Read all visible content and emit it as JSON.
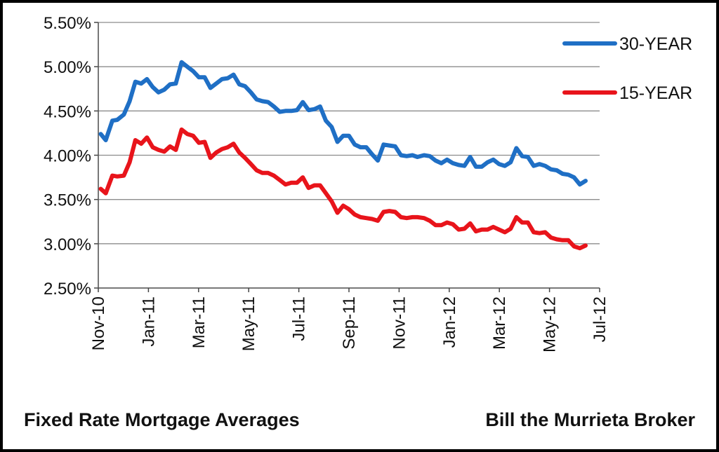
{
  "footer": {
    "left_text": "Fixed Rate Mortgage Averages",
    "right_text": "Bill the Murrieta Broker"
  },
  "chart_data": {
    "type": "line",
    "title": "",
    "xlabel": "",
    "ylabel": "",
    "ylim": [
      0.025,
      0.055
    ],
    "y_ticks": [
      "2.50%",
      "3.00%",
      "3.50%",
      "4.00%",
      "4.50%",
      "5.00%",
      "5.50%"
    ],
    "x_ticks": [
      "Nov-10",
      "Jan-11",
      "Mar-11",
      "May-11",
      "Jul-11",
      "Sep-11",
      "Nov-11",
      "Jan-12",
      "Mar-12",
      "May-12",
      "Jul-12"
    ],
    "grid": "horizontal",
    "legend_position": "top-right",
    "series": [
      {
        "name": "30-YEAR",
        "color": "#1f6fc5",
        "points": [
          [
            "2010-11-04",
            0.0424
          ],
          [
            "2010-11-10",
            0.0417
          ],
          [
            "2010-11-18",
            0.0439
          ],
          [
            "2010-11-24",
            0.044
          ],
          [
            "2010-12-02",
            0.0446
          ],
          [
            "2010-12-09",
            0.0461
          ],
          [
            "2010-12-16",
            0.0483
          ],
          [
            "2010-12-23",
            0.0481
          ],
          [
            "2010-12-30",
            0.0486
          ],
          [
            "2011-01-06",
            0.0477
          ],
          [
            "2011-01-13",
            0.0471
          ],
          [
            "2011-01-20",
            0.0474
          ],
          [
            "2011-01-27",
            0.048
          ],
          [
            "2011-02-03",
            0.0481
          ],
          [
            "2011-02-10",
            0.0505
          ],
          [
            "2011-02-17",
            0.05
          ],
          [
            "2011-02-24",
            0.0495
          ],
          [
            "2011-03-03",
            0.0488
          ],
          [
            "2011-03-10",
            0.0488
          ],
          [
            "2011-03-17",
            0.0476
          ],
          [
            "2011-03-24",
            0.0481
          ],
          [
            "2011-03-31",
            0.0486
          ],
          [
            "2011-04-07",
            0.0487
          ],
          [
            "2011-04-14",
            0.0491
          ],
          [
            "2011-04-21",
            0.048
          ],
          [
            "2011-04-28",
            0.0478
          ],
          [
            "2011-05-05",
            0.0471
          ],
          [
            "2011-05-12",
            0.0463
          ],
          [
            "2011-05-19",
            0.0461
          ],
          [
            "2011-05-26",
            0.046
          ],
          [
            "2011-06-02",
            0.0455
          ],
          [
            "2011-06-09",
            0.0449
          ],
          [
            "2011-06-16",
            0.045
          ],
          [
            "2011-06-23",
            0.045
          ],
          [
            "2011-06-30",
            0.0451
          ],
          [
            "2011-07-07",
            0.046
          ],
          [
            "2011-07-14",
            0.0451
          ],
          [
            "2011-07-21",
            0.0452
          ],
          [
            "2011-07-28",
            0.0455
          ],
          [
            "2011-08-04",
            0.0439
          ],
          [
            "2011-08-11",
            0.0432
          ],
          [
            "2011-08-18",
            0.0415
          ],
          [
            "2011-08-25",
            0.0422
          ],
          [
            "2011-09-01",
            0.0422
          ],
          [
            "2011-09-08",
            0.0412
          ],
          [
            "2011-09-15",
            0.0409
          ],
          [
            "2011-09-22",
            0.0409
          ],
          [
            "2011-09-29",
            0.0401
          ],
          [
            "2011-10-06",
            0.0394
          ],
          [
            "2011-10-13",
            0.0412
          ],
          [
            "2011-10-20",
            0.0411
          ],
          [
            "2011-10-27",
            0.041
          ],
          [
            "2011-11-03",
            0.04
          ],
          [
            "2011-11-10",
            0.0399
          ],
          [
            "2011-11-17",
            0.04
          ],
          [
            "2011-11-23",
            0.0398
          ],
          [
            "2011-12-01",
            0.04
          ],
          [
            "2011-12-08",
            0.0399
          ],
          [
            "2011-12-15",
            0.0394
          ],
          [
            "2011-12-22",
            0.0391
          ],
          [
            "2011-12-29",
            0.0395
          ],
          [
            "2012-01-05",
            0.0391
          ],
          [
            "2012-01-12",
            0.0389
          ],
          [
            "2012-01-19",
            0.0388
          ],
          [
            "2012-01-26",
            0.0398
          ],
          [
            "2012-02-02",
            0.0387
          ],
          [
            "2012-02-09",
            0.0387
          ],
          [
            "2012-02-16",
            0.0392
          ],
          [
            "2012-02-23",
            0.0395
          ],
          [
            "2012-03-01",
            0.039
          ],
          [
            "2012-03-08",
            0.0388
          ],
          [
            "2012-03-15",
            0.0392
          ],
          [
            "2012-03-22",
            0.0408
          ],
          [
            "2012-03-29",
            0.0399
          ],
          [
            "2012-04-05",
            0.0398
          ],
          [
            "2012-04-12",
            0.0388
          ],
          [
            "2012-04-19",
            0.039
          ],
          [
            "2012-04-26",
            0.0388
          ],
          [
            "2012-05-03",
            0.0384
          ],
          [
            "2012-05-10",
            0.0383
          ],
          [
            "2012-05-17",
            0.0379
          ],
          [
            "2012-05-24",
            0.0378
          ],
          [
            "2012-05-31",
            0.0375
          ],
          [
            "2012-06-07",
            0.0367
          ],
          [
            "2012-06-14",
            0.0371
          ]
        ]
      },
      {
        "name": "15-YEAR",
        "color": "#e8141b",
        "points": [
          [
            "2010-11-04",
            0.0362
          ],
          [
            "2010-11-10",
            0.0357
          ],
          [
            "2010-11-18",
            0.0377
          ],
          [
            "2010-11-24",
            0.0376
          ],
          [
            "2010-12-02",
            0.0377
          ],
          [
            "2010-12-09",
            0.0392
          ],
          [
            "2010-12-16",
            0.0417
          ],
          [
            "2010-12-23",
            0.0413
          ],
          [
            "2010-12-30",
            0.042
          ],
          [
            "2011-01-06",
            0.0409
          ],
          [
            "2011-01-13",
            0.0406
          ],
          [
            "2011-01-20",
            0.0404
          ],
          [
            "2011-01-27",
            0.041
          ],
          [
            "2011-02-03",
            0.0406
          ],
          [
            "2011-02-10",
            0.0429
          ],
          [
            "2011-02-17",
            0.0424
          ],
          [
            "2011-02-24",
            0.0422
          ],
          [
            "2011-03-03",
            0.0414
          ],
          [
            "2011-03-10",
            0.0415
          ],
          [
            "2011-03-17",
            0.0397
          ],
          [
            "2011-03-24",
            0.0403
          ],
          [
            "2011-03-31",
            0.0407
          ],
          [
            "2011-04-07",
            0.0409
          ],
          [
            "2011-04-14",
            0.0413
          ],
          [
            "2011-04-21",
            0.0403
          ],
          [
            "2011-04-28",
            0.0397
          ],
          [
            "2011-05-05",
            0.039
          ],
          [
            "2011-05-12",
            0.0383
          ],
          [
            "2011-05-19",
            0.038
          ],
          [
            "2011-05-26",
            0.038
          ],
          [
            "2011-06-02",
            0.0377
          ],
          [
            "2011-06-09",
            0.0372
          ],
          [
            "2011-06-16",
            0.0367
          ],
          [
            "2011-06-23",
            0.0369
          ],
          [
            "2011-06-30",
            0.0369
          ],
          [
            "2011-07-07",
            0.0375
          ],
          [
            "2011-07-14",
            0.0363
          ],
          [
            "2011-07-21",
            0.0366
          ],
          [
            "2011-07-28",
            0.0366
          ],
          [
            "2011-08-04",
            0.0357
          ],
          [
            "2011-08-11",
            0.0348
          ],
          [
            "2011-08-18",
            0.0335
          ],
          [
            "2011-08-25",
            0.0343
          ],
          [
            "2011-09-01",
            0.0339
          ],
          [
            "2011-09-08",
            0.0333
          ],
          [
            "2011-09-15",
            0.033
          ],
          [
            "2011-09-22",
            0.0329
          ],
          [
            "2011-09-29",
            0.0328
          ],
          [
            "2011-10-06",
            0.0326
          ],
          [
            "2011-10-13",
            0.0336
          ],
          [
            "2011-10-20",
            0.0337
          ],
          [
            "2011-10-27",
            0.0336
          ],
          [
            "2011-11-03",
            0.033
          ],
          [
            "2011-11-10",
            0.0329
          ],
          [
            "2011-11-17",
            0.033
          ],
          [
            "2011-11-23",
            0.033
          ],
          [
            "2011-12-01",
            0.0329
          ],
          [
            "2011-12-08",
            0.0326
          ],
          [
            "2011-12-15",
            0.0321
          ],
          [
            "2011-12-22",
            0.0321
          ],
          [
            "2011-12-29",
            0.0324
          ],
          [
            "2012-01-05",
            0.0322
          ],
          [
            "2012-01-12",
            0.0316
          ],
          [
            "2012-01-19",
            0.0317
          ],
          [
            "2012-01-26",
            0.0323
          ],
          [
            "2012-02-02",
            0.0314
          ],
          [
            "2012-02-09",
            0.0316
          ],
          [
            "2012-02-16",
            0.0316
          ],
          [
            "2012-02-23",
            0.0319
          ],
          [
            "2012-03-01",
            0.0316
          ],
          [
            "2012-03-08",
            0.0313
          ],
          [
            "2012-03-15",
            0.0317
          ],
          [
            "2012-03-22",
            0.033
          ],
          [
            "2012-03-29",
            0.0324
          ],
          [
            "2012-04-05",
            0.0324
          ],
          [
            "2012-04-12",
            0.0313
          ],
          [
            "2012-04-19",
            0.0312
          ],
          [
            "2012-04-26",
            0.0313
          ],
          [
            "2012-05-03",
            0.0307
          ],
          [
            "2012-05-10",
            0.0305
          ],
          [
            "2012-05-17",
            0.0304
          ],
          [
            "2012-05-24",
            0.0304
          ],
          [
            "2012-05-31",
            0.0297
          ],
          [
            "2012-06-07",
            0.0295
          ],
          [
            "2012-06-14",
            0.0298
          ]
        ]
      }
    ]
  }
}
